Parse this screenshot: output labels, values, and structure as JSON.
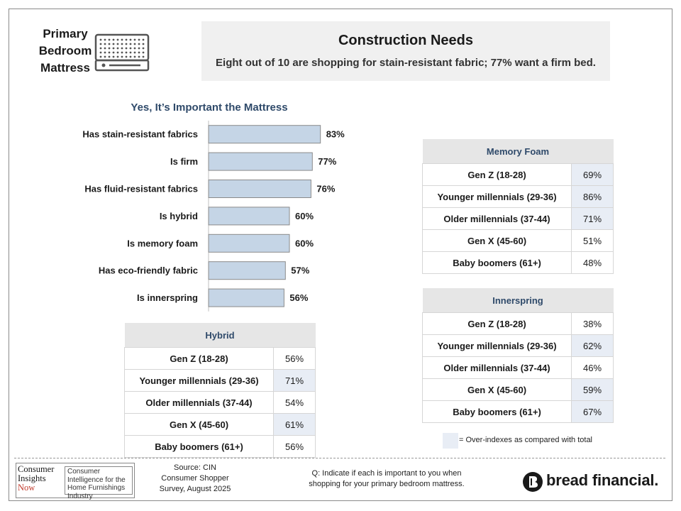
{
  "section_title": [
    "Primary",
    "Bedroom",
    "Mattress"
  ],
  "header": {
    "title": "Construction Needs",
    "subtitle": "Eight out of 10 are shopping for stain-resistant fabric; 77% want a firm bed."
  },
  "chart_data": [
    {
      "type": "bar",
      "orientation": "horizontal",
      "title": "Yes, It’s Important the Mattress",
      "categories": [
        "Has stain-resistant fabrics",
        "Is firm",
        "Has fluid-resistant fabrics",
        "Is hybrid",
        "Is memory foam",
        "Has eco-friendly fabric",
        "Is innerspring"
      ],
      "values": [
        83,
        77,
        76,
        60,
        60,
        57,
        56
      ],
      "value_labels": [
        "83%",
        "77%",
        "76%",
        "60%",
        "60%",
        "57%",
        "56%"
      ],
      "xlim": [
        0,
        100
      ],
      "unit": "%",
      "bar_color": "#c5d5e6",
      "grid": false
    },
    {
      "type": "table",
      "title": "Hybrid",
      "rows": [
        "Gen Z (18-28)",
        "Younger millennials (29-36)",
        "Older millennials (37-44)",
        "Gen X (45-60)",
        "Baby boomers (61+)"
      ],
      "values": [
        "56%",
        "71%",
        "54%",
        "61%",
        "56%"
      ],
      "over_index": [
        false,
        true,
        false,
        true,
        false
      ]
    },
    {
      "type": "table",
      "title": "Memory Foam",
      "rows": [
        "Gen Z (18-28)",
        "Younger millennials (29-36)",
        "Older millennials (37-44)",
        "Gen X (45-60)",
        "Baby boomers (61+)"
      ],
      "values": [
        "69%",
        "86%",
        "71%",
        "51%",
        "48%"
      ],
      "over_index": [
        true,
        true,
        true,
        false,
        false
      ]
    },
    {
      "type": "table",
      "title": "Innerspring",
      "rows": [
        "Gen Z (18-28)",
        "Younger millennials (29-36)",
        "Older millennials (37-44)",
        "Gen X (45-60)",
        "Baby boomers (61+)"
      ],
      "values": [
        "38%",
        "62%",
        "46%",
        "59%",
        "67%"
      ],
      "over_index": [
        false,
        true,
        false,
        true,
        true
      ]
    }
  ],
  "legend": {
    "text": "= Over-indexes as compared with total",
    "highlight_color": "#e8edf5"
  },
  "footer": {
    "cin_logo": {
      "left": [
        "Consumer",
        "Insights",
        "Now"
      ],
      "right": "Consumer Intelligence for the Home Furnishings Industry"
    },
    "source": [
      "Source: CIN",
      "Consumer Shopper",
      "Survey, August 2025"
    ],
    "question": [
      "Q:  Indicate if each is important to you when",
      "shopping for your primary bedroom mattress."
    ],
    "brand": "bread financial."
  }
}
